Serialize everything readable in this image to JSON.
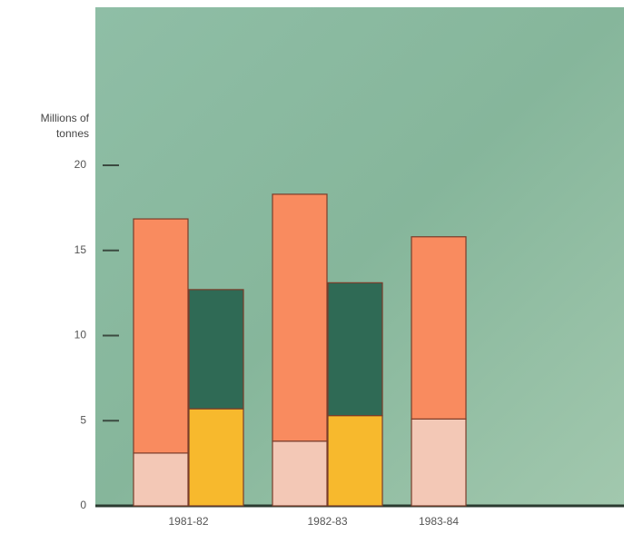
{
  "chart_data": {
    "type": "stacked-bar",
    "y_label": [
      "Millions of",
      "tonnes"
    ],
    "categories": [
      "1981-82",
      "1982-83",
      "1983-84"
    ],
    "series": [
      {
        "color": "#f3c8b6",
        "stack": 0,
        "values": [
          3.1,
          3.8,
          5.1
        ]
      },
      {
        "color": "#f98b5f",
        "stack": 0,
        "values": [
          13.75,
          14.5,
          10.7
        ]
      },
      {
        "color": "#f7b92d",
        "stack": 1,
        "values": [
          5.7,
          5.3,
          null
        ]
      },
      {
        "color": "#2f6a55",
        "stack": 1,
        "values": [
          7.0,
          7.8,
          null
        ]
      }
    ],
    "ylim": [
      0,
      20
    ],
    "yticks": [
      0,
      5,
      10,
      15,
      20
    ]
  }
}
